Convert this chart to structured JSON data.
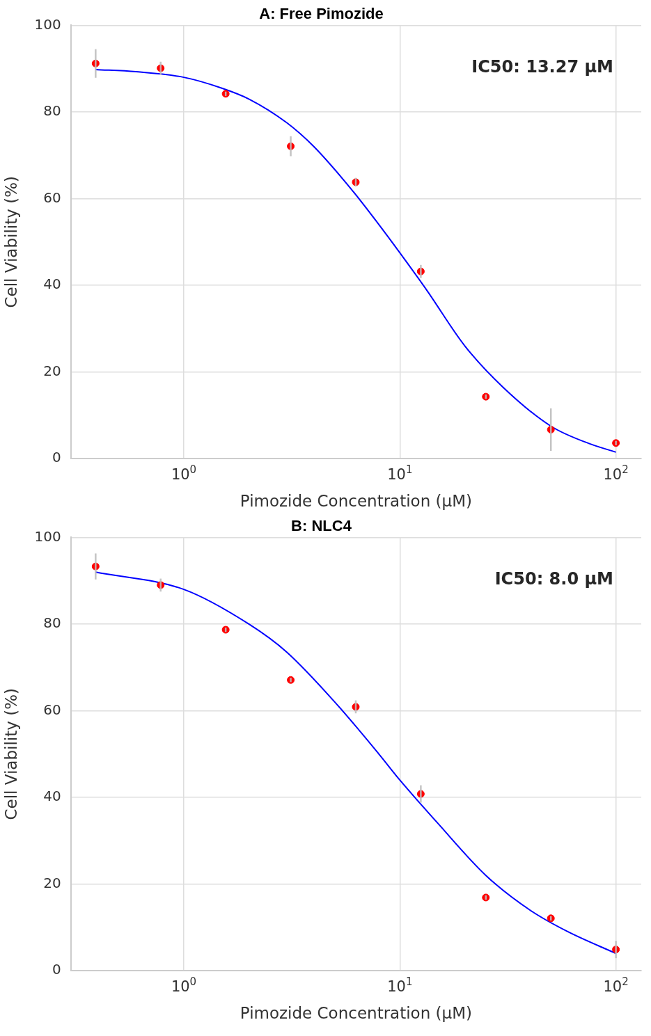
{
  "chart_data": [
    {
      "type": "scatter",
      "title": "A: Free Pimozide",
      "xlabel": "Pimozide Concentration (µM)",
      "ylabel": "Cell Viability (%)",
      "log": "x",
      "grid": true,
      "xlim": [
        0.303,
        131
      ],
      "xticks": [
        {
          "value": 1,
          "label": "10$^{0}$"
        },
        {
          "value": 10,
          "label": "10$^{1}$"
        },
        {
          "value": 100,
          "label": "10$^{2}$"
        }
      ],
      "ylim": [
        0,
        100
      ],
      "yticks": [
        0,
        20,
        40,
        60,
        80,
        100
      ],
      "annotations": [
        "IC50: 13.27 µM"
      ],
      "series": [
        {
          "type": "line",
          "color": "#0000ff",
          "marker": "none",
          "line_style": "solid",
          "x": [
            0.39,
            0.6,
            1,
            1.5,
            2,
            3,
            4,
            6,
            8,
            10,
            13.27,
            20,
            30,
            50,
            75,
            100
          ],
          "values": [
            89.8,
            89.3,
            88,
            85.5,
            83,
            77.5,
            72,
            62,
            54,
            47.5,
            39,
            26,
            16.5,
            7.5,
            3.5,
            1.5
          ]
        },
        {
          "color": "#ff0000",
          "marker": "circle",
          "x": [
            0.390625,
            0.78125,
            1.5625,
            3.125,
            6.25,
            12.5,
            25,
            50,
            100
          ],
          "values": [
            91.2,
            90.1,
            84.2,
            72.1,
            63.8,
            43.2,
            14.3,
            6.7,
            3.6
          ],
          "errors": [
            3.3,
            1.5,
            0.5,
            2.3,
            1,
            1.5,
            0.5,
            4.9,
            0.5
          ]
        }
      ]
    },
    {
      "type": "scatter",
      "title": "B: NLC4",
      "xlabel": "Pimozide Concentration (µM)",
      "ylabel": "Cell Viability (%)",
      "log": "x",
      "grid": true,
      "xlim": [
        0.303,
        131
      ],
      "xticks": [
        {
          "value": 1,
          "label": "10$^{0}$"
        },
        {
          "value": 10,
          "label": "10$^{1}$"
        },
        {
          "value": 100,
          "label": "10$^{2}$"
        }
      ],
      "ylim": [
        0,
        100
      ],
      "yticks": [
        0,
        20,
        40,
        60,
        80,
        100
      ],
      "annotations": [
        "IC50: 8.0 µM"
      ],
      "series": [
        {
          "type": "line",
          "color": "#0000ff",
          "marker": "none",
          "line_style": "solid",
          "x": [
            0.39,
            1,
            2,
            3,
            5,
            8,
            10,
            15,
            25,
            40,
            60,
            100
          ],
          "values": [
            92,
            88,
            80,
            73.5,
            62,
            50,
            44,
            34,
            22,
            14,
            9,
            4
          ]
        },
        {
          "color": "#ff0000",
          "marker": "circle",
          "x": [
            0.390625,
            0.78125,
            1.5625,
            3.125,
            6.25,
            12.5,
            25,
            50,
            100
          ],
          "values": [
            93.3,
            89.0,
            78.7,
            67.1,
            60.9,
            40.8,
            16.9,
            12.1,
            4.9
          ],
          "errors": [
            3,
            1.5,
            0.5,
            0.5,
            1.5,
            2,
            0.5,
            0.5,
            2
          ]
        }
      ]
    }
  ]
}
